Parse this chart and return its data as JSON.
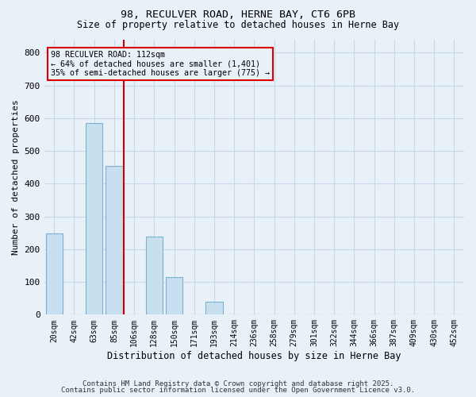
{
  "title_line1": "98, RECULVER ROAD, HERNE BAY, CT6 6PB",
  "title_line2": "Size of property relative to detached houses in Herne Bay",
  "xlabel": "Distribution of detached houses by size in Herne Bay",
  "ylabel": "Number of detached properties",
  "categories": [
    "20sqm",
    "42sqm",
    "63sqm",
    "85sqm",
    "106sqm",
    "128sqm",
    "150sqm",
    "171sqm",
    "193sqm",
    "214sqm",
    "236sqm",
    "258sqm",
    "279sqm",
    "301sqm",
    "322sqm",
    "344sqm",
    "366sqm",
    "387sqm",
    "409sqm",
    "430sqm",
    "452sqm"
  ],
  "values": [
    247,
    0,
    585,
    455,
    0,
    238,
    115,
    0,
    40,
    0,
    0,
    0,
    0,
    0,
    0,
    0,
    0,
    0,
    0,
    0,
    0
  ],
  "bar_color": "#c8dff0",
  "bar_edge_color": "#7ab0d0",
  "grid_color": "#c8d8e8",
  "background_color": "#e8f0f8",
  "vline_index": 4,
  "annotation_text": "98 RECULVER ROAD: 112sqm\n← 64% of detached houses are smaller (1,401)\n35% of semi-detached houses are larger (775) →",
  "annotation_box_color": "#dd0000",
  "vline_color": "#cc0000",
  "footnote1": "Contains HM Land Registry data © Crown copyright and database right 2025.",
  "footnote2": "Contains public sector information licensed under the Open Government Licence v3.0.",
  "ylim": [
    0,
    840
  ],
  "yticks": [
    0,
    100,
    200,
    300,
    400,
    500,
    600,
    700,
    800
  ]
}
